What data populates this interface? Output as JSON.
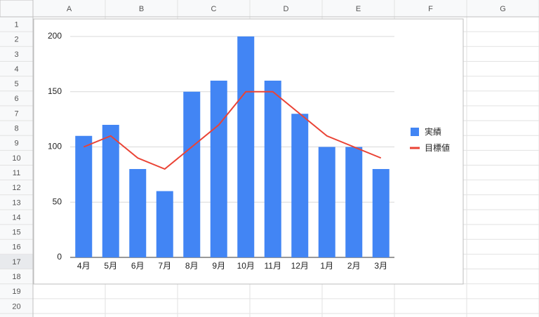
{
  "sheet": {
    "columns": [
      "A",
      "B",
      "C",
      "D",
      "E",
      "F",
      "G"
    ],
    "rows": [
      1,
      2,
      3,
      4,
      5,
      6,
      7,
      8,
      9,
      10,
      11,
      12,
      13,
      14,
      15,
      16,
      17,
      18,
      19,
      20
    ],
    "selected_row": 17
  },
  "chart_data": {
    "type": "combo",
    "categories": [
      "4月",
      "5月",
      "6月",
      "7月",
      "8月",
      "9月",
      "10月",
      "11月",
      "12月",
      "1月",
      "2月",
      "3月"
    ],
    "series": [
      {
        "name": "実績",
        "type": "bar",
        "color": "#4285f4",
        "values": [
          110,
          120,
          80,
          60,
          150,
          160,
          200,
          160,
          130,
          100,
          100,
          80
        ]
      },
      {
        "name": "目標値",
        "type": "line",
        "color": "#ea4335",
        "values": [
          100,
          110,
          90,
          80,
          100,
          120,
          150,
          150,
          130,
          110,
          100,
          90
        ]
      }
    ],
    "ylim": [
      0,
      200
    ],
    "yticks": [
      0,
      50,
      100,
      150,
      200
    ],
    "grid": true,
    "legend": "right"
  }
}
